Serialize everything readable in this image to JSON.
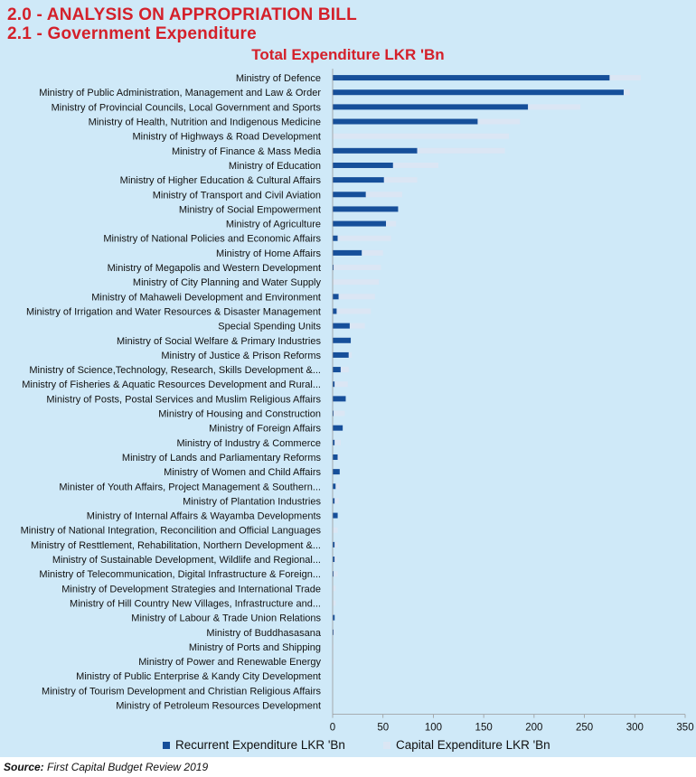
{
  "headings": {
    "section": "2.0 - ANALYSIS ON APPROPRIATION BILL",
    "subsection": "2.1 - Government Expenditure"
  },
  "source": {
    "label": "Source:",
    "text": "First Capital Budget Review 2019"
  },
  "colors": {
    "recurrent": "#164f9a",
    "capital": "#dbe6f4",
    "heading": "#d4202a",
    "panel": "#cfe9f8"
  },
  "chart_data": {
    "type": "bar",
    "orientation": "horizontal",
    "stacked": true,
    "title": "Total Expenditure LKR 'Bn",
    "xlabel": "",
    "ylabel": "",
    "xlim": [
      0,
      350
    ],
    "xticks": [
      0,
      50,
      100,
      150,
      200,
      250,
      300,
      350
    ],
    "grid": false,
    "legend_position": "bottom",
    "categories": [
      "Ministry of Defence",
      "Ministry of Public Administration, Management and Law & Order",
      "Ministry of Provincial Councils, Local Government and Sports",
      "Ministry of Health, Nutrition and Indigenous Medicine",
      "Ministry of Highways & Road Development",
      "Ministry of Finance & Mass Media",
      "Ministry of Education",
      "Ministry of Higher Education & Cultural Affairs",
      "Ministry of Transport and Civil Aviation",
      "Ministry of Social Empowerment",
      "Ministry of Agriculture",
      "Ministry of National Policies and Economic Affairs",
      "Ministry of Home Affairs",
      "Ministry of Megapolis and Western Development",
      "Ministry of City Planning and Water Supply",
      "Ministry of Mahaweli Development and Environment",
      "Ministry of Irrigation and Water Resources & Disaster Management",
      "Special Spending Units",
      "Ministry of Social Welfare & Primary Industries",
      "Ministry of Justice & Prison Reforms",
      "Ministry of Science,Technology, Research, Skills Development &...",
      "Ministry of Fisheries & Aquatic Resources Development and Rural...",
      "Ministry of Posts, Postal Services and Muslim Religious Affairs",
      "Ministry of Housing and Construction",
      "Ministry of Foreign Affairs",
      "Ministry of Industry & Commerce",
      "Ministry of Lands and Parliamentary Reforms",
      "Ministry of Women and Child Affairs",
      "Minister of Youth Affairs, Project Management & Southern...",
      "Ministry of Plantation Industries",
      "Ministry of Internal Affairs & Wayamba Developments",
      "Ministry of National Integration, Reconcilition and Official Languages",
      "Ministry of Resttlement, Rehabilitation, Northern Development &...",
      "Ministry of Sustainable Development, Wildlife and Regional...",
      "Ministry of Telecommunication, Digital Infrastructure & Foreign...",
      "Ministry of Development Strategies and International Trade",
      "Ministry of Hill Country New Villages, Infrastructure and...",
      "Ministry of Labour & Trade Union Relations",
      "Ministry of Buddhasasana",
      "Ministry of Ports and Shipping",
      "Ministry of Power and Renewable Energy",
      "Ministry of Public Enterprise & Kandy City Development",
      "Ministry of Tourism Development and Christian Religious Affairs",
      "Ministry of Petroleum Resources Development"
    ],
    "series": [
      {
        "name": "Recurrent Expenditure LKR 'Bn",
        "color": "#164f9a",
        "values": [
          275,
          289,
          194,
          144,
          0,
          84,
          60,
          51,
          33,
          65,
          53,
          5,
          29,
          1,
          0,
          6,
          4,
          17,
          18,
          16,
          8,
          2,
          13,
          1,
          10,
          2,
          5,
          7,
          3,
          2,
          5,
          0,
          2,
          2,
          1,
          0,
          0,
          2,
          1,
          0,
          0,
          0,
          0,
          0
        ]
      },
      {
        "name": "Capital Expenditure LKR 'Bn",
        "color": "#dbe6f4",
        "values": [
          31,
          6,
          52,
          42,
          175,
          87,
          45,
          33,
          36,
          0,
          10,
          53,
          21,
          47,
          46,
          36,
          34,
          15,
          0,
          3,
          8,
          13,
          0,
          11,
          0,
          6,
          2,
          0,
          4,
          4,
          0,
          5,
          3,
          2,
          4,
          3,
          3,
          0,
          1,
          1,
          1,
          0,
          0,
          0
        ]
      }
    ]
  }
}
